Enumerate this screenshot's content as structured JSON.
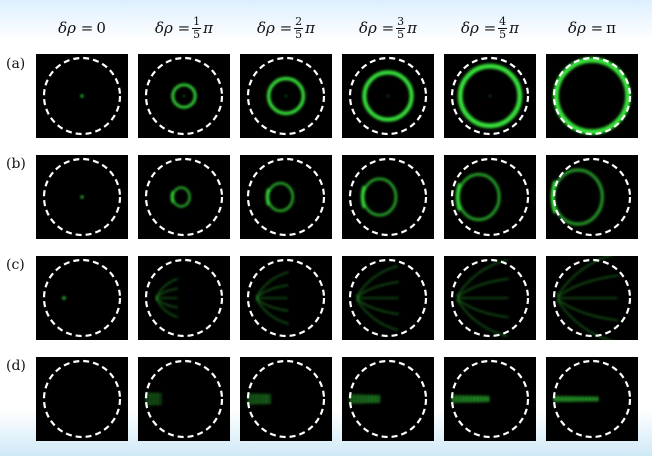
{
  "columns": [
    {
      "prefix": "δρ = ",
      "frac": null,
      "suffix": "0"
    },
    {
      "prefix": "δρ = ",
      "frac": {
        "num": "1",
        "den": "5"
      },
      "suffix": "π"
    },
    {
      "prefix": "δρ = ",
      "frac": {
        "num": "2",
        "den": "5"
      },
      "suffix": "π"
    },
    {
      "prefix": "δρ = ",
      "frac": {
        "num": "3",
        "den": "5"
      },
      "suffix": "π"
    },
    {
      "prefix": "δρ = ",
      "frac": {
        "num": "4",
        "den": "5"
      },
      "suffix": "π"
    },
    {
      "prefix": "δρ = ",
      "frac": null,
      "suffix": "π"
    }
  ],
  "rows": [
    {
      "label": "(a)"
    },
    {
      "label": "(b)"
    },
    {
      "label": "(c)"
    },
    {
      "label": "(d)"
    }
  ],
  "colors": {
    "glow": "#37e23a",
    "panel_bg": "#000000",
    "circle": "#ffffff"
  }
}
